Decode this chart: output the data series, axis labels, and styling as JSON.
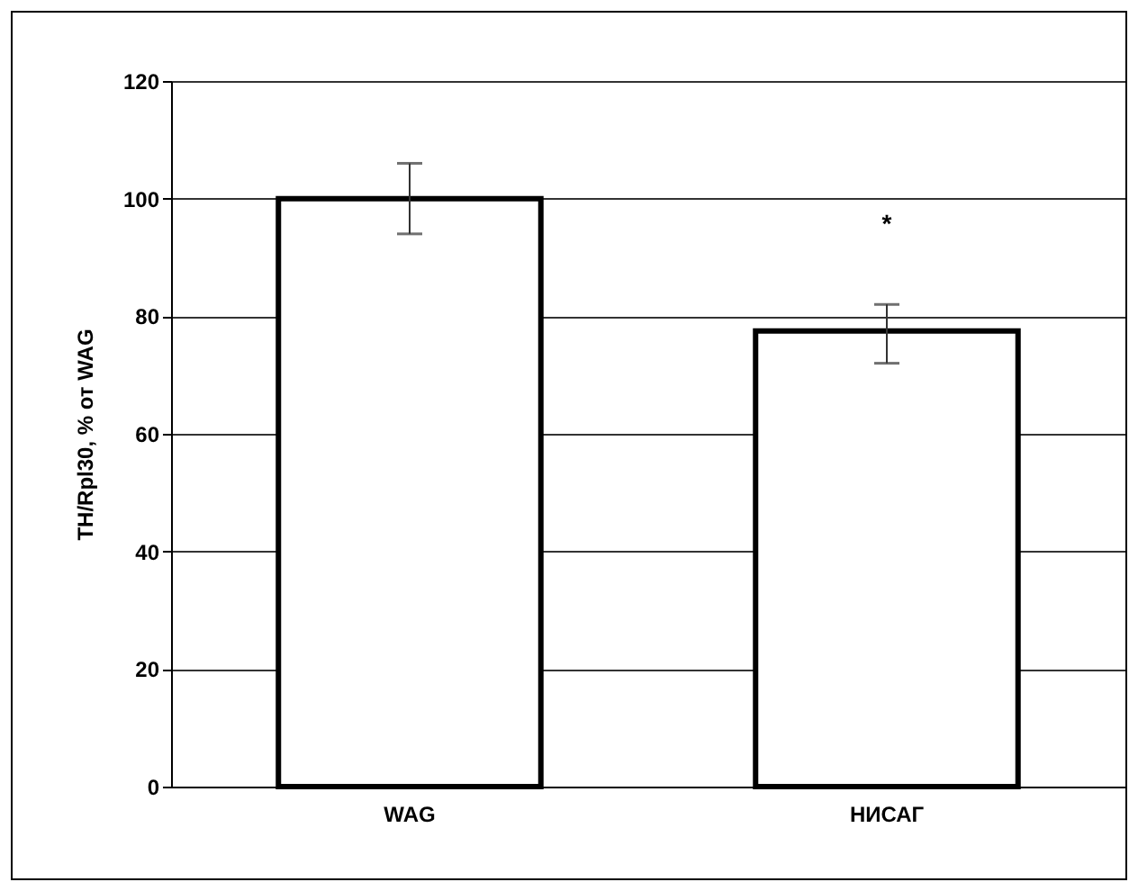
{
  "chart_data": {
    "type": "bar",
    "ylabel": "TH/Rpl30, % от WAG",
    "categories": [
      "WAG",
      "НИСАГ"
    ],
    "values": [
      100,
      77.5
    ],
    "errors": [
      [
        94,
        106
      ],
      [
        72,
        82
      ]
    ],
    "color": "#ffffff",
    "ylim": [
      0,
      120
    ],
    "yticks": [
      0,
      20,
      40,
      60,
      80,
      100,
      120
    ],
    "grid": true,
    "annotations": [
      "*"
    ]
  }
}
